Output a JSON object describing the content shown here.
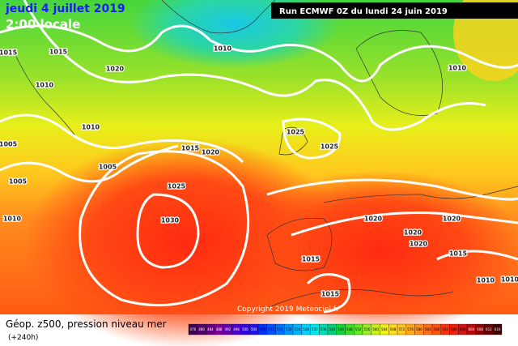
{
  "header": {
    "date": "jeudi 4 juillet 2019",
    "time": "2:00 locale",
    "run": "Run ECMWF 0Z du lundi 24 juin 2019"
  },
  "footer": {
    "field": "Géop. z500, pression niveau mer",
    "lead": "(+240h)",
    "copyright": "Copyright 2019 Meteociel.fr"
  },
  "isobar_labels": [
    "1015",
    "1015",
    "1010",
    "1020",
    "1010",
    "1010",
    "1005",
    "1005",
    "1005",
    "1010",
    "1015",
    "1020",
    "1025",
    "1030",
    "1025",
    "1025",
    "1020",
    "1020",
    "1020",
    "1020",
    "1015",
    "1015",
    "1015",
    "1010",
    "1010",
    "1010"
  ],
  "legend": {
    "ticks": [
      476,
      480,
      484,
      488,
      492,
      496,
      500,
      504,
      508,
      512,
      516,
      520,
      524,
      528,
      532,
      536,
      540,
      544,
      548,
      552,
      556,
      560,
      564,
      568,
      572,
      576,
      580,
      584,
      588,
      592,
      596,
      600,
      604,
      608,
      612,
      616
    ]
  }
}
